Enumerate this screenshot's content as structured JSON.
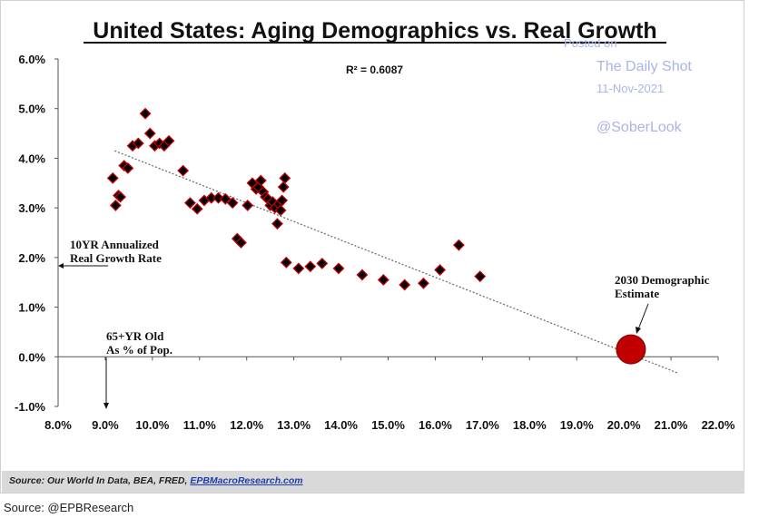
{
  "source_line": "Source: @EPBResearch",
  "footer": {
    "prefix": "Source: Our World In Data, BEA, FRED, ",
    "link": "EPBMacroResearch.com"
  },
  "watermark": {
    "posted": "Posted on",
    "site": "The Daily Shot",
    "date": "11-Nov-2021",
    "handle": "@SoberLook",
    "color": "#a9b4e6"
  },
  "chart_data": {
    "type": "scatter",
    "title": "United States: Aging Demographics vs. Real Growth",
    "r_squared_label": "R² = 0.6087",
    "xlim": [
      0.08,
      0.22
    ],
    "ylim": [
      -0.01,
      0.06
    ],
    "x_ticks": [
      "8.0%",
      "9.0%",
      "10.0%",
      "11.0%",
      "12.0%",
      "13.0%",
      "14.0%",
      "15.0%",
      "16.0%",
      "17.0%",
      "18.0%",
      "19.0%",
      "20.0%",
      "21.0%",
      "22.0%"
    ],
    "y_ticks": [
      "6.0%",
      "5.0%",
      "4.0%",
      "3.0%",
      "2.0%",
      "1.0%",
      "0.0%",
      "-1.0%"
    ],
    "annotations": {
      "y_axis_line1": "10YR Annualized",
      "y_axis_line2": "Real Growth Rate",
      "x_axis_line1": "65+YR Old",
      "x_axis_line2": "As % of Pop.",
      "estimate_line1": "2030 Demographic",
      "estimate_line2": "Estimate"
    },
    "marker_color": "#000000",
    "marker_edge": "#c00000",
    "estimate_color": "#c00000",
    "trendline": {
      "x": [
        0.092,
        0.2115
      ],
      "y": [
        0.0415,
        -0.0033
      ]
    },
    "estimate_point": {
      "x": 0.2015,
      "y": 0.0015
    },
    "points": [
      [
        0.0916,
        0.036
      ],
      [
        0.0922,
        0.0305
      ],
      [
        0.0928,
        0.0325
      ],
      [
        0.0932,
        0.0322
      ],
      [
        0.094,
        0.0385
      ],
      [
        0.0948,
        0.038
      ],
      [
        0.0958,
        0.0425
      ],
      [
        0.097,
        0.043
      ],
      [
        0.0985,
        0.049
      ],
      [
        0.0995,
        0.045
      ],
      [
        0.1005,
        0.0425
      ],
      [
        0.1015,
        0.043
      ],
      [
        0.1025,
        0.0425
      ],
      [
        0.1035,
        0.0435
      ],
      [
        0.1065,
        0.0375
      ],
      [
        0.108,
        0.031
      ],
      [
        0.1095,
        0.0298
      ],
      [
        0.111,
        0.0315
      ],
      [
        0.1125,
        0.032
      ],
      [
        0.114,
        0.032
      ],
      [
        0.1155,
        0.0318
      ],
      [
        0.117,
        0.031
      ],
      [
        0.118,
        0.0238
      ],
      [
        0.1188,
        0.023
      ],
      [
        0.1202,
        0.0305
      ],
      [
        0.1212,
        0.035
      ],
      [
        0.122,
        0.0338
      ],
      [
        0.1225,
        0.0342
      ],
      [
        0.123,
        0.0355
      ],
      [
        0.1235,
        0.0332
      ],
      [
        0.124,
        0.0322
      ],
      [
        0.1245,
        0.0318
      ],
      [
        0.125,
        0.0305
      ],
      [
        0.1255,
        0.0312
      ],
      [
        0.126,
        0.03
      ],
      [
        0.1265,
        0.0268
      ],
      [
        0.1268,
        0.0308
      ],
      [
        0.1272,
        0.0295
      ],
      [
        0.1275,
        0.0315
      ],
      [
        0.1278,
        0.0342
      ],
      [
        0.1281,
        0.036
      ],
      [
        0.1284,
        0.019
      ],
      [
        0.131,
        0.0178
      ],
      [
        0.1335,
        0.0182
      ],
      [
        0.136,
        0.0188
      ],
      [
        0.1395,
        0.0178
      ],
      [
        0.1445,
        0.0165
      ],
      [
        0.149,
        0.0155
      ],
      [
        0.1535,
        0.0145
      ],
      [
        0.1575,
        0.0148
      ],
      [
        0.161,
        0.0175
      ],
      [
        0.165,
        0.0225
      ],
      [
        0.1695,
        0.0162
      ]
    ]
  }
}
